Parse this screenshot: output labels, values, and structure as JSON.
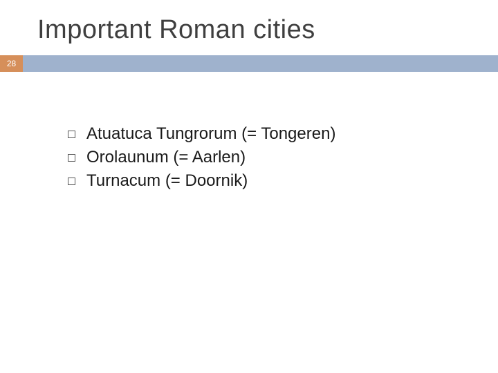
{
  "title": "Important Roman cities",
  "page_number": "28",
  "colors": {
    "page_num_bg": "#d68f5a",
    "stripe_bg": "#9fb2cd",
    "title_color": "#3f3f3f",
    "text_color": "#1a1a1a",
    "bullet_border": "#555555",
    "background": "#ffffff"
  },
  "bullets": [
    "Atuatuca Tungrorum (= Tongeren)",
    "Orolaunum (= Aarlen)",
    "Turnacum (= Doornik)"
  ]
}
